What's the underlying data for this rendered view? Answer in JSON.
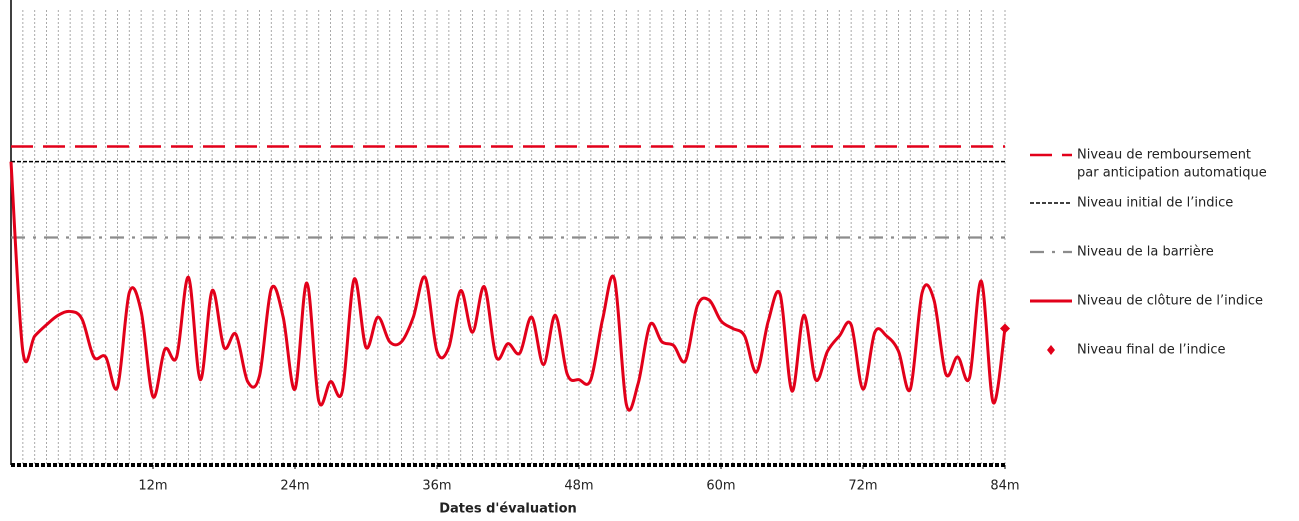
{
  "chart_data": {
    "type": "line",
    "x_label": "Dates d'évaluation",
    "xlim": [
      0,
      84
    ],
    "xticks": [
      {
        "value": 12,
        "label": "12m"
      },
      {
        "value": 24,
        "label": "24m"
      },
      {
        "value": 36,
        "label": "36m"
      },
      {
        "value": 48,
        "label": "48m"
      },
      {
        "value": 60,
        "label": "60m"
      },
      {
        "value": 72,
        "label": "72m"
      },
      {
        "value": 84,
        "label": "84m"
      }
    ],
    "ylim": [
      -60,
      180
    ],
    "levels": [
      {
        "name": [
          "Niveau de remboursement",
          "par anticipation automatique"
        ],
        "value": 108,
        "color": "#e2001a",
        "style": "dashed"
      },
      {
        "name": [
          "Niveau initial de l’indice"
        ],
        "value": 100,
        "color": "#000000",
        "style": "dotted"
      },
      {
        "name": [
          "Niveau de la barrière"
        ],
        "value": 60,
        "color": "#8c8c8c",
        "style": "dashdot"
      }
    ],
    "series": [
      {
        "name": "Niveau de clôture de l’indice",
        "color": "#e2001a",
        "x": [
          0,
          1,
          2,
          3,
          4,
          5,
          6,
          7,
          8,
          9,
          10,
          11,
          12,
          13,
          14,
          15,
          16,
          17,
          18,
          19,
          20,
          21,
          22,
          23,
          24,
          25,
          26,
          27,
          28,
          29,
          30,
          31,
          32,
          33,
          34,
          35,
          36,
          37,
          38,
          39,
          40,
          41,
          42,
          43,
          44,
          45,
          46,
          47,
          48,
          49,
          50,
          51,
          52,
          53,
          54,
          55,
          56,
          57,
          58,
          59,
          60,
          61,
          62,
          63,
          64,
          65,
          66,
          67,
          68,
          69,
          70,
          71,
          72,
          73,
          74,
          75,
          76,
          77,
          78,
          79,
          80,
          81,
          82,
          83,
          84
        ],
        "values": [
          100,
          0,
          8,
          14,
          19,
          21,
          17,
          -3,
          -3,
          -19,
          31,
          21,
          -24,
          1,
          -3,
          39,
          -15,
          32,
          2,
          9,
          -16,
          -13,
          33,
          18,
          -20,
          36,
          -26,
          -16,
          -21,
          38,
          2,
          18,
          5,
          5,
          18,
          39,
          0,
          2,
          32,
          10,
          34,
          -3,
          4,
          -1,
          18,
          -7,
          19,
          -12,
          -15,
          -15,
          17,
          38,
          -28,
          -17,
          14,
          5,
          3,
          -5,
          24,
          27,
          16,
          12,
          8,
          -11,
          16,
          30,
          -21,
          19,
          -15,
          0,
          8,
          14,
          -20,
          10,
          8,
          0,
          -20,
          31,
          27,
          -12,
          -3,
          -14,
          37,
          -27,
          12
        ]
      }
    ],
    "final": {
      "name": "Niveau final de l’indice",
      "x": 84,
      "value": 12,
      "color": "#e2001a"
    }
  }
}
